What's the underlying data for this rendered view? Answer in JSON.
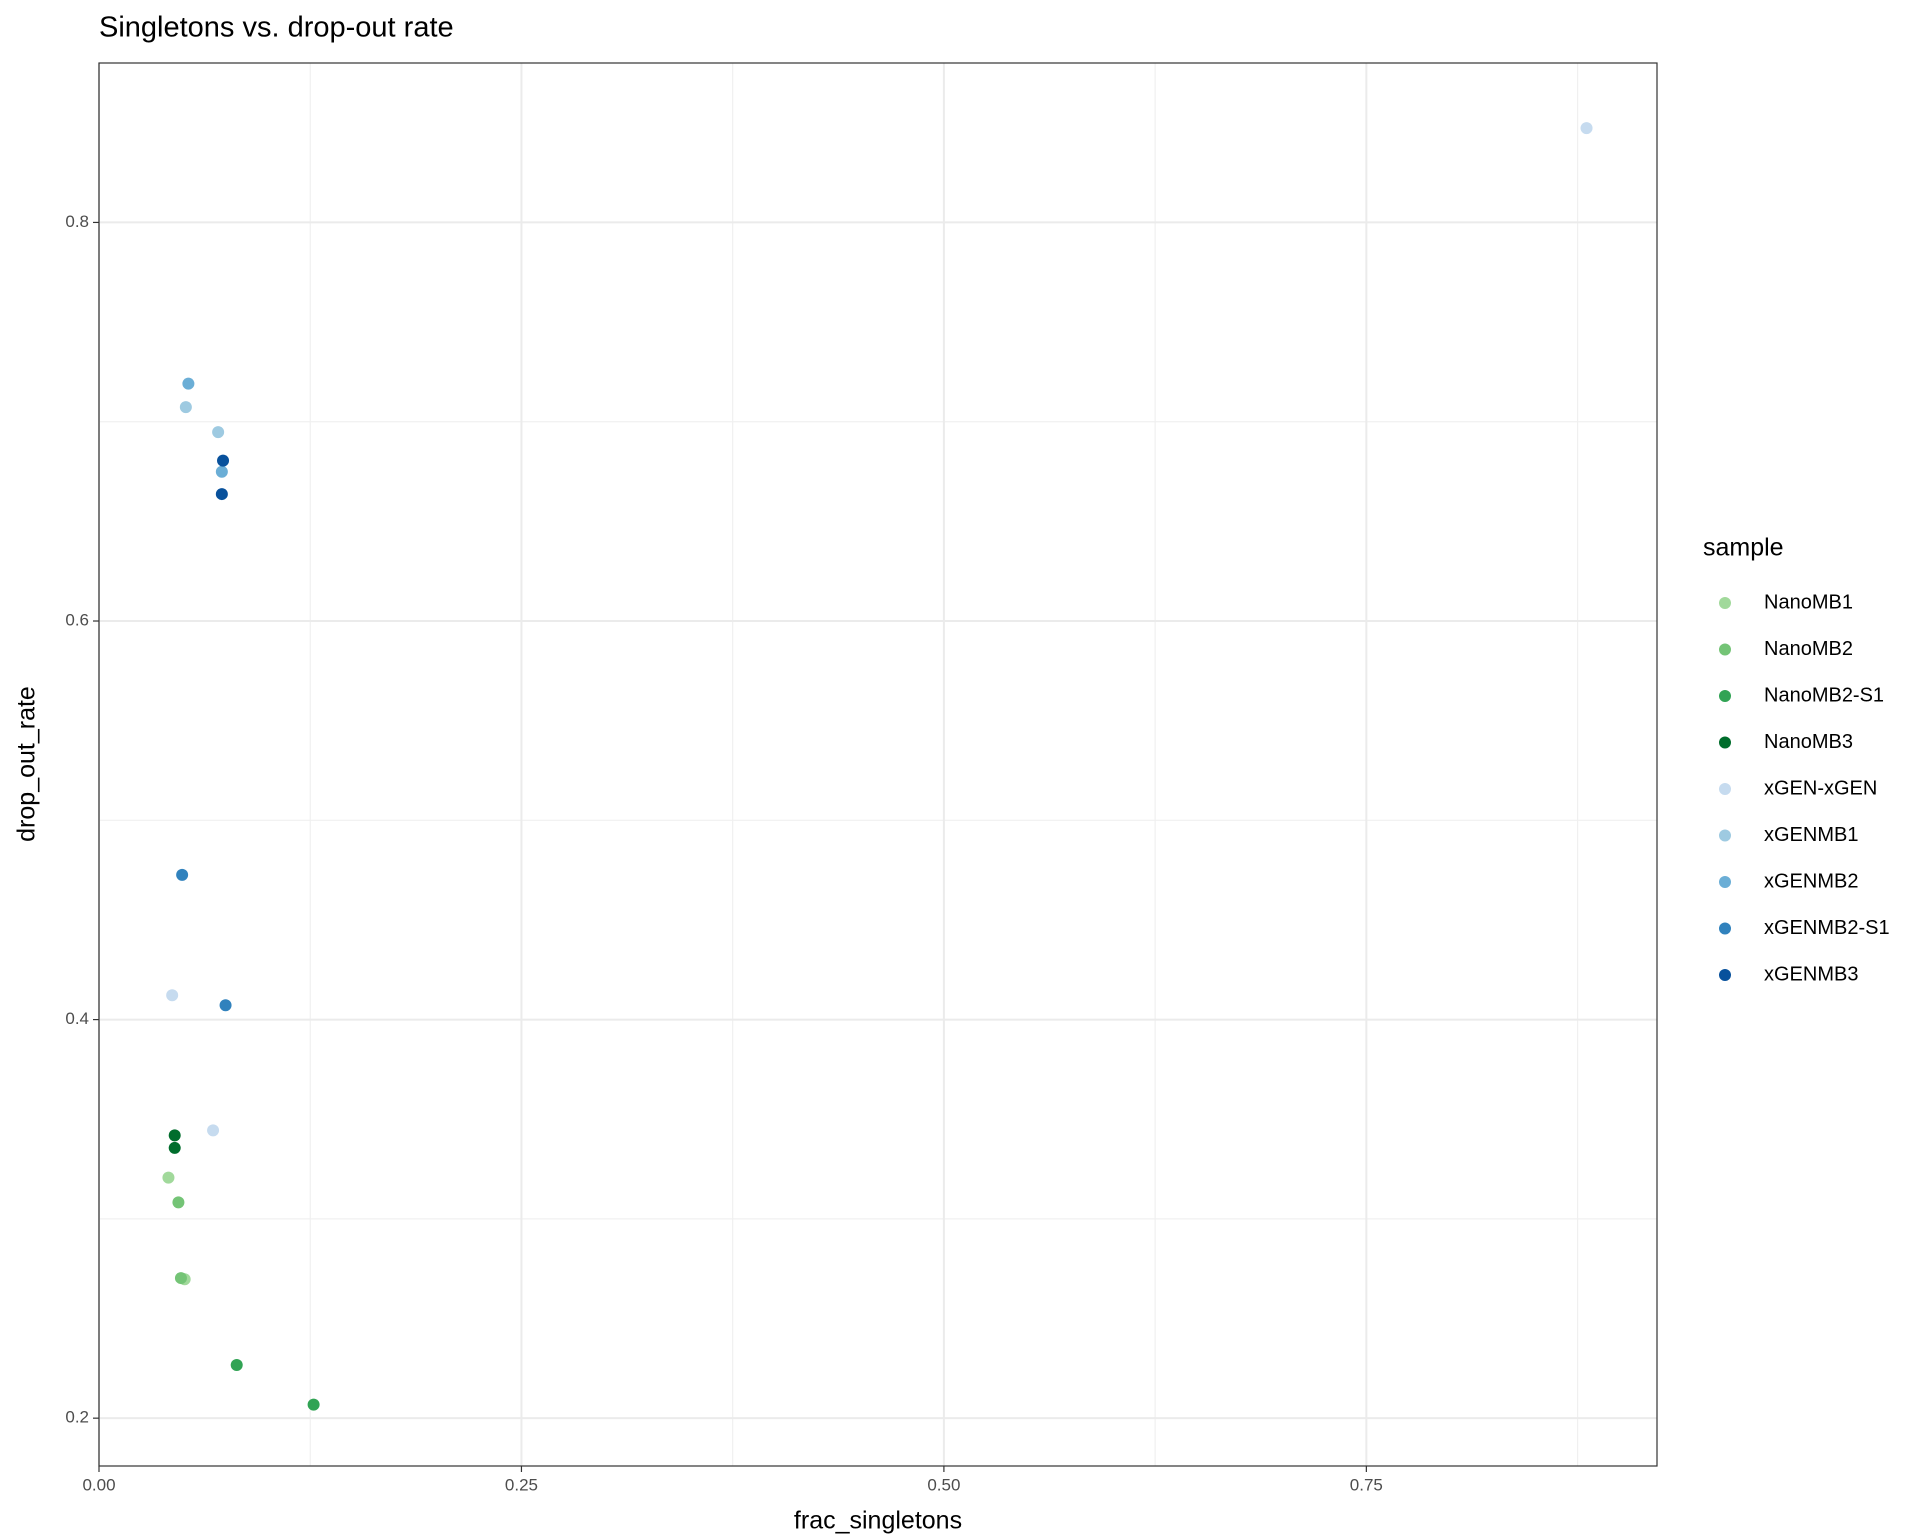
{
  "chart_data": {
    "type": "scatter",
    "title": "Singletons vs. drop-out rate",
    "x_label": "frac_singletons",
    "y_label": "drop_out_rate",
    "legend_title": "sample",
    "xlim": [
      0,
      0.922
    ],
    "ylim": [
      0.176,
      0.88
    ],
    "xticks": [
      {
        "value": 0,
        "label": "0.00"
      },
      0.25,
      {
        "value": 0.5,
        "label": "0.50"
      },
      0.75
    ],
    "yticks": [
      0.2,
      0.4,
      0.6,
      0.8
    ],
    "grid": true,
    "legend": "right",
    "series": [
      {
        "name": "NanoMB1",
        "color": "#a1d99b",
        "x": [
          0.0411,
          0.0507
        ],
        "values": [
          0.3207,
          0.2697
        ]
      },
      {
        "name": "NanoMB2",
        "color": "#74c476",
        "x": [
          0.047,
          0.0485
        ],
        "values": [
          0.3083,
          0.2703
        ]
      },
      {
        "name": "NanoMB2-S1",
        "color": "#31a354",
        "x": [
          0.0815,
          0.127
        ],
        "values": [
          0.2267,
          0.2068
        ]
      },
      {
        "name": "NanoMB3",
        "color": "#006d2c",
        "x": [
          0.0448,
          0.0448
        ],
        "values": [
          0.3419,
          0.3356
        ]
      },
      {
        "name": "xGEN-xGEN",
        "color": "#c6dbef",
        "x": [
          0.8803,
          0.0433,
          0.0675
        ],
        "values": [
          0.8473,
          0.4122,
          0.3444
        ]
      },
      {
        "name": "xGENMB1",
        "color": "#9ecae1",
        "x": [
          0.0514,
          0.0705
        ],
        "values": [
          0.7073,
          0.6948
        ]
      },
      {
        "name": "xGENMB2",
        "color": "#6baed6",
        "x": [
          0.0529,
          0.0727
        ],
        "values": [
          0.7191,
          0.6749
        ]
      },
      {
        "name": "xGENMB2-S1",
        "color": "#3182bd",
        "x": [
          0.0492,
          0.0749
        ],
        "values": [
          0.4726,
          0.4072
        ]
      },
      {
        "name": "xGENMB3",
        "color": "#08519c",
        "x": [
          0.0734,
          0.0727
        ],
        "values": [
          0.6805,
          0.6637
        ]
      }
    ]
  }
}
